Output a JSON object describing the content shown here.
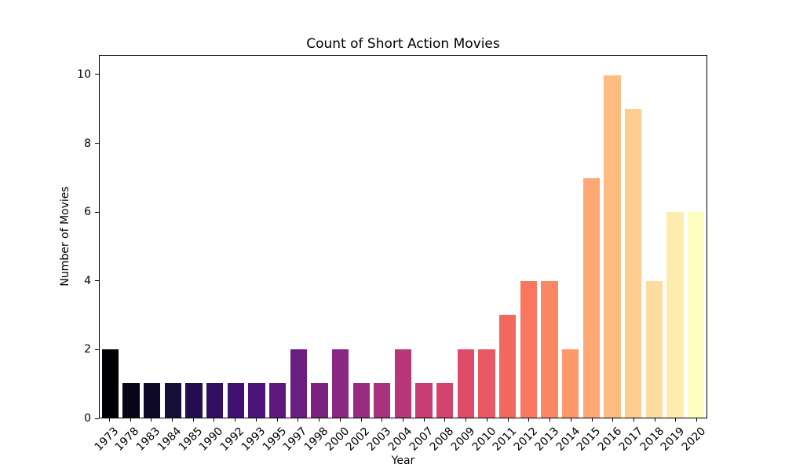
{
  "chart_data": {
    "type": "bar",
    "title": "Count of Short Action Movies",
    "xlabel": "Year",
    "ylabel": "Number of Movies",
    "categories": [
      "1973",
      "1978",
      "1983",
      "1984",
      "1985",
      "1990",
      "1992",
      "1993",
      "1995",
      "1997",
      "1998",
      "2000",
      "2002",
      "2003",
      "2004",
      "2007",
      "2008",
      "2009",
      "2010",
      "2011",
      "2012",
      "2013",
      "2014",
      "2015",
      "2016",
      "2017",
      "2018",
      "2019",
      "2020"
    ],
    "values": [
      2,
      1,
      1,
      1,
      1,
      1,
      1,
      1,
      1,
      2,
      1,
      2,
      1,
      1,
      2,
      1,
      1,
      2,
      2,
      3,
      4,
      4,
      2,
      7,
      10,
      9,
      4,
      6,
      6
    ],
    "bar_colors": [
      "#000004",
      "#070516",
      "#0e0a28",
      "#170e3a",
      "#250e4f",
      "#330f63",
      "#411172",
      "#4f1478",
      "#5e187e",
      "#6c1d80",
      "#7b2281",
      "#892881",
      "#982d7f",
      "#a8327c",
      "#b73779",
      "#c53d73",
      "#d2446d",
      "#df4c67",
      "#e85a63",
      "#f1685e",
      "#f8775e",
      "#fa8864",
      "#fd986b",
      "#fea975",
      "#febb82",
      "#fecc8f",
      "#fddc9f",
      "#fcedaf",
      "#fcfdbf"
    ],
    "colormap": "magma",
    "yticks": [
      0,
      2,
      4,
      6,
      8,
      10
    ],
    "ylim": [
      0,
      10.57
    ],
    "bar_width_fraction": 0.8,
    "grid": false,
    "legend": null,
    "xtick_rotation_deg": 45,
    "axis_color": "#000000",
    "background_color": "#ffffff"
  }
}
